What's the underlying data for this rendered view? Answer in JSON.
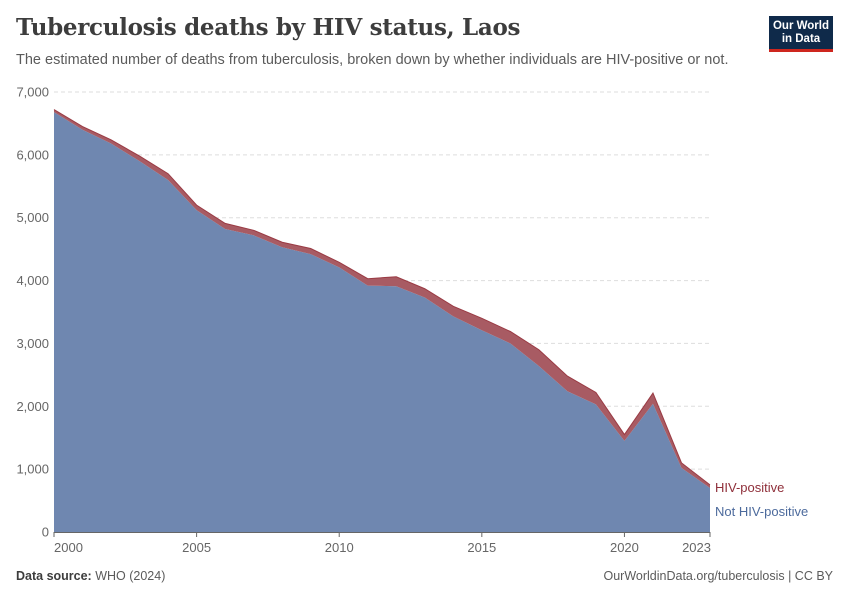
{
  "header": {
    "title": "Tuberculosis deaths by HIV status, Laos",
    "subtitle": "The estimated number of deaths from tuberculosis, broken down by whether individuals are HIV-positive or not.",
    "logo_line1": "Our World",
    "logo_line2": "in Data"
  },
  "footer": {
    "source_label": "Data source:",
    "source_value": "WHO (2024)",
    "link": "OurWorldinData.org/tuberculosis | CC BY"
  },
  "colors": {
    "not_hiv_fill": "#6f87b0",
    "hiv_fill": "#a85b63",
    "hiv_line": "#9a3b44",
    "not_hiv_label": "#4c6a9c",
    "hiv_label": "#8f2f3a",
    "grid": "#dddddd",
    "axis": "#666666"
  },
  "chart_data": {
    "type": "area",
    "stacked": true,
    "title": "Tuberculosis deaths by HIV status, Laos",
    "xlabel": "",
    "ylabel": "",
    "x": [
      2000,
      2001,
      2002,
      2003,
      2004,
      2005,
      2006,
      2007,
      2008,
      2009,
      2010,
      2011,
      2012,
      2013,
      2014,
      2015,
      2016,
      2017,
      2018,
      2019,
      2020,
      2021,
      2022,
      2023
    ],
    "xlim": [
      2000,
      2023
    ],
    "ylim": [
      0,
      7000
    ],
    "yticks": [
      0,
      1000,
      2000,
      3000,
      4000,
      5000,
      6000,
      7000
    ],
    "ytick_labels": [
      "0",
      "1,000",
      "2,000",
      "3,000",
      "4,000",
      "5,000",
      "6,000",
      "7,000"
    ],
    "xticks": [
      2000,
      2005,
      2010,
      2015,
      2020,
      2023
    ],
    "xtick_labels": [
      "2000",
      "2005",
      "2010",
      "2015",
      "2020",
      "2023"
    ],
    "grid": "horizontal dashed",
    "series": [
      {
        "name": "Not HIV-positive",
        "values": [
          6680,
          6400,
          6180,
          5900,
          5600,
          5120,
          4820,
          4720,
          4530,
          4420,
          4210,
          3920,
          3910,
          3730,
          3430,
          3210,
          3000,
          2640,
          2240,
          2030,
          1450,
          2040,
          1020,
          700
        ]
      },
      {
        "name": "HIV-positive",
        "values": [
          40,
          50,
          60,
          80,
          100,
          80,
          90,
          80,
          80,
          90,
          80,
          110,
          150,
          140,
          160,
          190,
          190,
          260,
          240,
          190,
          100,
          170,
          80,
          50
        ]
      }
    ]
  }
}
